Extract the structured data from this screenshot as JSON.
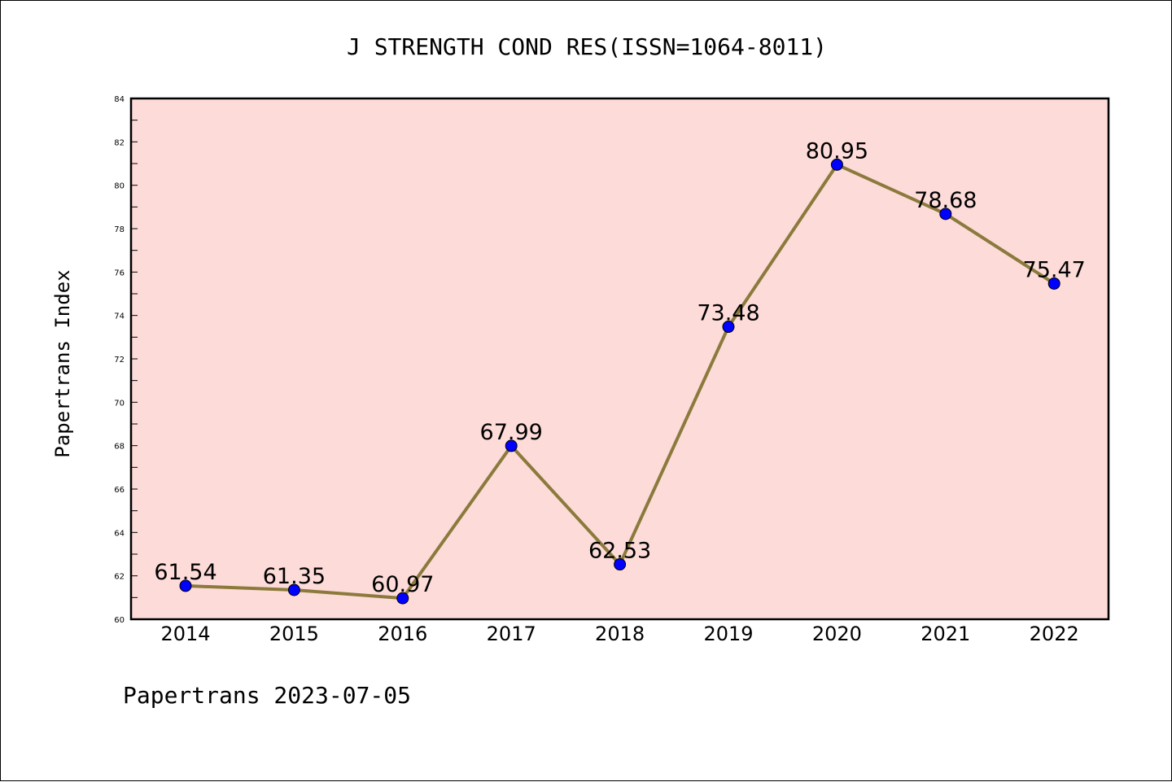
{
  "chart_data": {
    "type": "line",
    "title": "J STRENGTH COND RES(ISSN=1064-8011)",
    "xlabel": "",
    "ylabel": "Papertrans Index",
    "footer": "Papertrans 2023-07-05",
    "categories": [
      "2014",
      "2015",
      "2016",
      "2017",
      "2018",
      "2019",
      "2020",
      "2021",
      "2022"
    ],
    "series": [
      {
        "values": [
          61.54,
          61.35,
          60.97,
          67.99,
          62.53,
          73.48,
          80.95,
          78.68,
          75.47
        ],
        "data_labels": [
          "61.54",
          "61.35",
          "60.97",
          "67.99",
          "62.53",
          "73.48",
          "80.95",
          "78.68",
          "75.47"
        ]
      }
    ],
    "ylim": [
      60,
      84
    ],
    "yticks": [
      "60",
      "62",
      "64",
      "66",
      "68",
      "70",
      "72",
      "74",
      "76",
      "78",
      "80",
      "82",
      "84"
    ],
    "grid": false,
    "legend": "none",
    "colors": {
      "plot_background": "#fddbd9",
      "line": "#8b7a3c",
      "marker": "#0000ff",
      "axes": "#000000"
    }
  }
}
